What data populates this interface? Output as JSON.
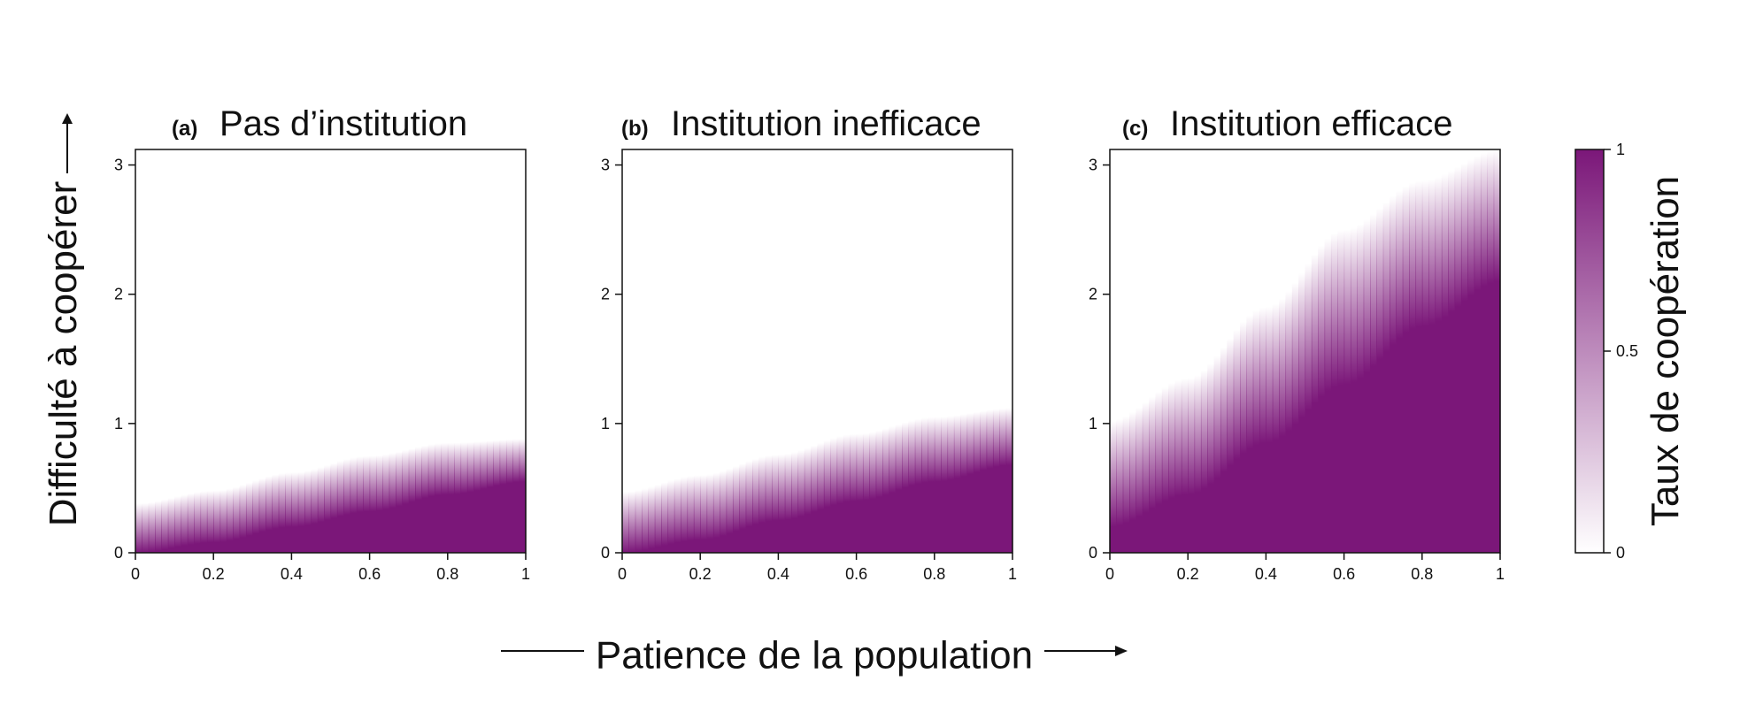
{
  "colors": {
    "low": "#ffffff",
    "high": "#7b1779",
    "axis": "#111111"
  },
  "labels": {
    "ylabel": "Difficulté à coopérer",
    "xlabel": "Patience de la population",
    "colorbar": "Taux de coopération"
  },
  "colorbar": {
    "ticks": [
      "0",
      "0.5",
      "1"
    ],
    "range": [
      0,
      1
    ]
  },
  "panels": [
    {
      "letter": "(a)",
      "title": "Pas d’institution"
    },
    {
      "letter": "(b)",
      "title": "Institution inefficace"
    },
    {
      "letter": "(c)",
      "title": "Institution efficace"
    }
  ],
  "chart_data": [
    {
      "type": "heatmap",
      "panel": "(a)",
      "title": "Pas d’institution",
      "xlabel": "Patience de la population",
      "ylabel": "Difficulté à coopérer",
      "xlim": [
        0,
        1
      ],
      "ylim": [
        0,
        3.12
      ],
      "xticks": [
        "0",
        "0.2",
        "0.4",
        "0.6",
        "0.8",
        "1"
      ],
      "yticks": [
        "0",
        "1",
        "2",
        "3"
      ],
      "colorscale": "Taux de coopération, 0 (white) to 1 (purple)",
      "boundary_x": [
        0,
        0.2,
        0.4,
        0.6,
        0.8,
        1
      ],
      "boundary_y": [
        0.38,
        0.48,
        0.62,
        0.75,
        0.85,
        0.88
      ],
      "full_cooperation_y": [
        0.0,
        0.08,
        0.2,
        0.32,
        0.45,
        0.55
      ]
    },
    {
      "type": "heatmap",
      "panel": "(b)",
      "title": "Institution inefficace",
      "xlabel": "Patience de la population",
      "ylabel": "Difficulté à coopérer",
      "xlim": [
        0,
        1
      ],
      "ylim": [
        0,
        3.12
      ],
      "xticks": [
        "0",
        "0.2",
        "0.4",
        "0.6",
        "0.8",
        "1"
      ],
      "yticks": [
        "0",
        "1",
        "2",
        "3"
      ],
      "colorscale": "Taux de coopération, 0 (white) to 1 (purple)",
      "boundary_x": [
        0,
        0.2,
        0.4,
        0.6,
        0.8,
        1
      ],
      "boundary_y": [
        0.47,
        0.6,
        0.76,
        0.92,
        1.05,
        1.12
      ],
      "full_cooperation_y": [
        0.0,
        0.1,
        0.25,
        0.4,
        0.55,
        0.68
      ]
    },
    {
      "type": "heatmap",
      "panel": "(c)",
      "title": "Institution efficace",
      "xlabel": "Patience de la population",
      "ylabel": "Difficulté à coopérer",
      "xlim": [
        0,
        1
      ],
      "ylim": [
        0,
        3.12
      ],
      "xticks": [
        "0",
        "0.2",
        "0.4",
        "0.6",
        "0.8",
        "1"
      ],
      "yticks": [
        "0",
        "1",
        "2",
        "3"
      ],
      "colorscale": "Taux de coopération, 0 (white) to 1 (purple)",
      "boundary_x": [
        0,
        0.2,
        0.4,
        0.6,
        0.8,
        1
      ],
      "boundary_y": [
        1.02,
        1.35,
        1.9,
        2.5,
        2.88,
        3.12
      ],
      "full_cooperation_y": [
        0.2,
        0.45,
        0.85,
        1.3,
        1.75,
        2.1
      ]
    }
  ]
}
